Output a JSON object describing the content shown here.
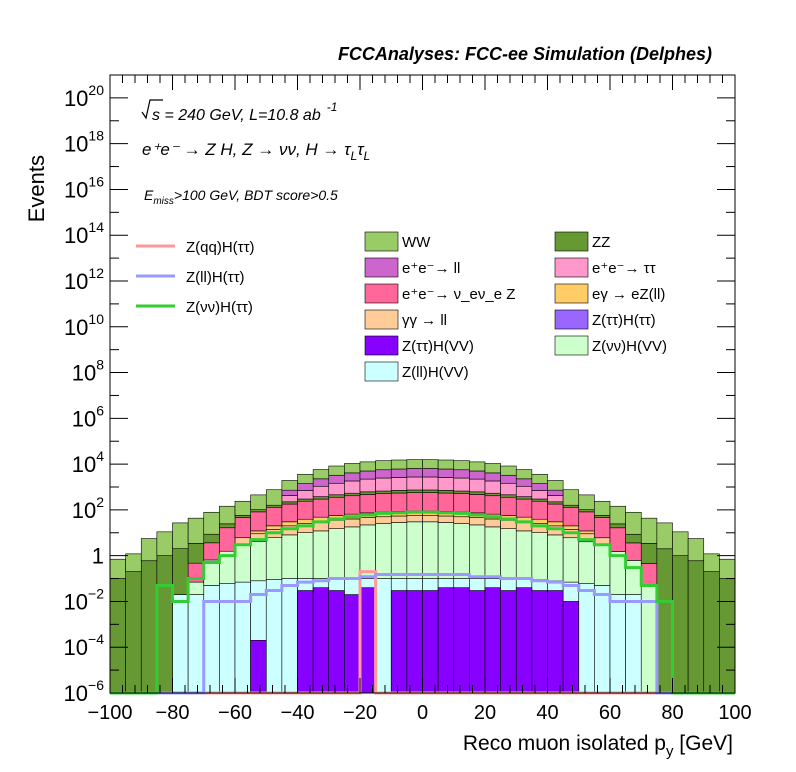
{
  "chart_data": {
    "type": "bar",
    "stacked": true,
    "title": "FCCAnalyses: FCC-ee Simulation (Delphes)",
    "xlabel": "Reco muon isolated p",
    "xlabel_sub": "y",
    "xlabel_unit": " [GeV]",
    "ylabel": "Events",
    "xlim": [
      -100,
      100
    ],
    "ylim": [
      1e-06,
      1e+21
    ],
    "log_y": true,
    "x_ticks": [
      "−100",
      "−80",
      "−60",
      "−40",
      "−20",
      "0",
      "20",
      "40",
      "60",
      "80",
      "100"
    ],
    "y_ticks": [
      {
        "base": "10",
        "exp": "−6",
        "v": 1e-06
      },
      {
        "base": "10",
        "exp": "−4",
        "v": 0.0001
      },
      {
        "base": "10",
        "exp": "−2",
        "v": 0.01
      },
      {
        "base": "1",
        "exp": "",
        "v": 1
      },
      {
        "base": "10",
        "exp": "2",
        "v": 100.0
      },
      {
        "base": "10",
        "exp": "4",
        "v": 10000.0
      },
      {
        "base": "10",
        "exp": "6",
        "v": 1000000.0
      },
      {
        "base": "10",
        "exp": "8",
        "v": 100000000.0
      },
      {
        "base": "10",
        "exp": "10",
        "v": 10000000000.0
      },
      {
        "base": "10",
        "exp": "12",
        "v": 1000000000000.0
      },
      {
        "base": "10",
        "exp": "14",
        "v": 100000000000000.0
      },
      {
        "base": "10",
        "exp": "16",
        "v": 1e+16
      },
      {
        "base": "10",
        "exp": "18",
        "v": 1e+18
      },
      {
        "base": "10",
        "exp": "20",
        "v": 1e+20
      }
    ],
    "annotations": {
      "energy": "s = 240 GeV, L=10.8 ab",
      "energy_exp": "-1",
      "process": "e⁺e⁻ → Z H, Z → νν, H → τ",
      "tau_sub": "L",
      "cuts_e": "E",
      "cuts_sub": "miss",
      "cuts_rest": ">100 GeV, BDT score>0.5"
    },
    "bin_width": 5,
    "x_start": -100,
    "stack_order": [
      "Z(ll)H(VV)",
      "Z(νν)H(VV)",
      "Z(ττ)H(VV)",
      "γγ → ll",
      "eγ → eZ(ll)",
      "e⁺e⁻→ ν_eν_e Z",
      "ZZ",
      "e⁺e⁻→ ττ",
      "e⁺e⁻→ ll",
      "WW"
    ],
    "stack_series": [
      {
        "name": "Z(ll)H(VV)",
        "color": "#ccffff",
        "values": [
          0,
          0,
          0,
          0,
          0.02,
          0.02,
          0.05,
          0.06,
          0.07,
          0.08,
          0.09,
          0.1,
          0.1,
          0.1,
          0.1,
          0.1,
          0.1,
          0.1,
          0.1,
          0.1,
          0.1,
          0.1,
          0.1,
          0.1,
          0.1,
          0.1,
          0.1,
          0.09,
          0.08,
          0.07,
          0.06,
          0.05,
          0.02,
          0.02,
          0,
          0,
          0,
          0,
          0,
          0
        ]
      },
      {
        "name": "Z(νν)H(VV)",
        "color": "#ccffcc",
        "values": [
          0,
          0,
          0,
          0,
          0,
          0.05,
          0.6,
          1.5,
          3,
          4,
          6,
          8,
          10,
          12,
          15,
          18,
          22,
          25,
          28,
          30,
          30,
          28,
          25,
          22,
          18,
          15,
          12,
          10,
          8,
          6,
          4,
          3,
          1.5,
          0.6,
          0.05,
          0,
          0,
          0,
          0,
          0
        ]
      },
      {
        "name": "Z(ττ)H(VV)",
        "color": "#8800ff",
        "values": [
          0,
          0,
          0,
          0,
          0,
          0,
          0,
          0,
          0,
          0,
          0,
          0,
          0,
          0,
          0,
          0,
          0,
          0,
          0,
          0,
          0,
          0,
          0,
          0,
          0,
          0,
          0,
          0,
          0,
          0,
          0,
          0,
          0,
          0,
          0,
          0,
          0,
          0,
          0,
          0
        ]
      },
      {
        "name": "γγ → ll",
        "color": "#ffcc99",
        "values": [
          0,
          0,
          0,
          0,
          0,
          0,
          0,
          0,
          3,
          5,
          8,
          12,
          15,
          18,
          20,
          22,
          24,
          25,
          26,
          26,
          26,
          26,
          25,
          24,
          22,
          20,
          18,
          15,
          12,
          8,
          5,
          3,
          0,
          0,
          0,
          0,
          0,
          0,
          0,
          0
        ]
      },
      {
        "name": "eγ → eZ(ll)",
        "color": "#ffcc66",
        "values": [
          0,
          0,
          0,
          0,
          0,
          0,
          0,
          0,
          0,
          3,
          6,
          10,
          14,
          18,
          22,
          25,
          28,
          30,
          32,
          33,
          33,
          32,
          30,
          28,
          25,
          22,
          18,
          14,
          10,
          6,
          3,
          0,
          0,
          0,
          0,
          0,
          0,
          0,
          0,
          0
        ]
      },
      {
        "name": "e⁺e⁻→ ν_eν_e Z",
        "color": "#ff6699",
        "values": [
          0,
          0,
          0,
          0,
          0,
          0.4,
          3,
          15,
          40,
          70,
          110,
          150,
          200,
          250,
          300,
          350,
          400,
          430,
          460,
          480,
          480,
          460,
          430,
          400,
          350,
          300,
          250,
          200,
          150,
          110,
          70,
          40,
          15,
          3,
          0.4,
          0,
          0,
          0,
          0,
          0
        ]
      },
      {
        "name": "ZZ",
        "color": "#669933",
        "values": [
          0.1,
          0.2,
          0.6,
          1,
          2,
          3,
          5,
          8,
          12,
          20,
          30,
          45,
          60,
          80,
          100,
          120,
          140,
          155,
          165,
          170,
          170,
          165,
          155,
          140,
          120,
          100,
          80,
          60,
          45,
          30,
          20,
          12,
          8,
          5,
          3,
          2,
          1,
          0.6,
          0.2,
          0.1
        ]
      },
      {
        "name": "e⁺e⁻→ ττ",
        "color": "#ff99cc",
        "values": [
          0,
          0,
          0,
          0,
          0,
          0,
          0,
          0,
          0,
          0,
          0,
          200,
          400,
          700,
          1000,
          1300,
          1600,
          1800,
          1900,
          2000,
          2000,
          1900,
          1800,
          1600,
          1300,
          1000,
          700,
          400,
          200,
          0,
          0,
          0,
          0,
          0,
          0,
          0,
          0,
          0,
          0,
          0
        ]
      },
      {
        "name": "e⁺e⁻→ ll",
        "color": "#cc66cc",
        "values": [
          0,
          0,
          0,
          0,
          0,
          0,
          0,
          0,
          0,
          0,
          0,
          300,
          700,
          1200,
          1800,
          2300,
          2800,
          3200,
          3500,
          3700,
          3700,
          3500,
          3200,
          2800,
          2300,
          1800,
          1200,
          700,
          300,
          0,
          0,
          0,
          0,
          0,
          0,
          0,
          0,
          0,
          0,
          0
        ]
      },
      {
        "name": "WW",
        "color": "#99cc66",
        "values": [
          0.6,
          1,
          5,
          10,
          25,
          40,
          70,
          120,
          180,
          350,
          600,
          1200,
          2200,
          3500,
          5000,
          6500,
          7500,
          8500,
          9000,
          9200,
          9200,
          9000,
          8500,
          7500,
          6500,
          5000,
          3500,
          2200,
          1200,
          600,
          350,
          180,
          120,
          70,
          40,
          25,
          10,
          5,
          1,
          0.6
        ]
      }
    ],
    "overlay_series": [
      {
        "name": "Z(ττ)H(ττ)",
        "color": "#9966ff",
        "values": [
          0,
          0,
          0,
          0,
          0,
          0,
          0,
          0,
          0,
          0,
          0,
          0,
          0,
          0,
          0,
          0.008,
          0,
          0,
          0,
          0,
          0.02,
          0.015,
          0,
          0,
          0,
          0,
          0.012,
          0,
          0,
          0,
          0,
          0,
          0,
          0,
          0,
          0,
          0,
          0,
          0,
          0
        ]
      },
      {
        "name": "Z(ττ)H(VV)",
        "color": "#8800ff",
        "values": [
          0,
          0,
          0,
          0,
          0,
          0,
          0,
          0,
          0,
          0.0002,
          0,
          0,
          0.03,
          0.04,
          0.03,
          0.02,
          0.04,
          0,
          0.03,
          0.03,
          0.03,
          0.04,
          0.04,
          0.03,
          0.04,
          0.03,
          0.04,
          0.03,
          0.03,
          0.01,
          0,
          0,
          0,
          0,
          0,
          0,
          0,
          0,
          0,
          0
        ]
      }
    ],
    "signal_series": [
      {
        "name": "Z(qq)H(ττ)",
        "color": "#ff9999",
        "values": [
          0,
          0,
          0,
          0,
          0,
          0,
          0,
          0,
          0,
          0,
          0,
          0,
          0,
          0,
          0,
          0,
          0.2,
          0,
          0,
          0,
          0,
          0,
          0,
          0,
          0,
          0,
          0,
          0,
          0,
          0,
          0,
          0,
          0,
          0,
          0,
          0,
          0,
          0,
          0,
          0
        ]
      },
      {
        "name": "Z(ll)H(ττ)",
        "color": "#9999ff",
        "values": [
          0,
          0,
          0,
          0,
          0,
          0,
          0.01,
          0.01,
          0.01,
          0.02,
          0.03,
          0.05,
          0.07,
          0.08,
          0.1,
          0.1,
          0.12,
          0.15,
          0.15,
          0.15,
          0.15,
          0.15,
          0.15,
          0.12,
          0.12,
          0.1,
          0.1,
          0.08,
          0.07,
          0.05,
          0.03,
          0.02,
          0.01,
          0.01,
          0.01,
          0,
          0,
          0,
          0,
          0
        ]
      },
      {
        "name": "Z(νν)H(ττ)",
        "color": "#33cc33",
        "values": [
          0,
          0,
          0,
          0.05,
          0.01,
          0.1,
          0.5,
          1,
          3,
          5,
          10,
          15,
          20,
          30,
          40,
          50,
          60,
          70,
          75,
          80,
          80,
          75,
          70,
          60,
          50,
          40,
          30,
          20,
          15,
          10,
          5,
          3,
          1,
          0.3,
          0.05,
          0.01,
          0,
          0,
          0,
          0
        ]
      }
    ],
    "legend_left": [
      {
        "label": "Z(qq)H(ττ)",
        "color": "#ff9999"
      },
      {
        "label": "Z(ll)H(ττ)",
        "color": "#9999ff"
      },
      {
        "label": "Z(νν)H(ττ)",
        "color": "#33cc33"
      }
    ],
    "legend_right": [
      {
        "label": "WW",
        "color": "#99cc66"
      },
      {
        "label": "ZZ",
        "color": "#669933"
      },
      {
        "label": "e⁺e⁻→ ll",
        "color": "#cc66cc"
      },
      {
        "label": "e⁺e⁻→ ττ",
        "color": "#ff99cc"
      },
      {
        "label": "e⁺e⁻→ ν_eν_e Z",
        "color": "#ff6699"
      },
      {
        "label": "eγ → eZ(ll)",
        "color": "#ffcc66"
      },
      {
        "label": "γγ → ll",
        "color": "#ffcc99"
      },
      {
        "label": "Z(ττ)H(ττ)",
        "color": "#9966ff"
      },
      {
        "label": "Z(ττ)H(VV)",
        "color": "#8800ff"
      },
      {
        "label": "Z(νν)H(VV)",
        "color": "#ccffcc"
      },
      {
        "label": "Z(ll)H(VV)",
        "color": "#ccffff"
      }
    ]
  }
}
